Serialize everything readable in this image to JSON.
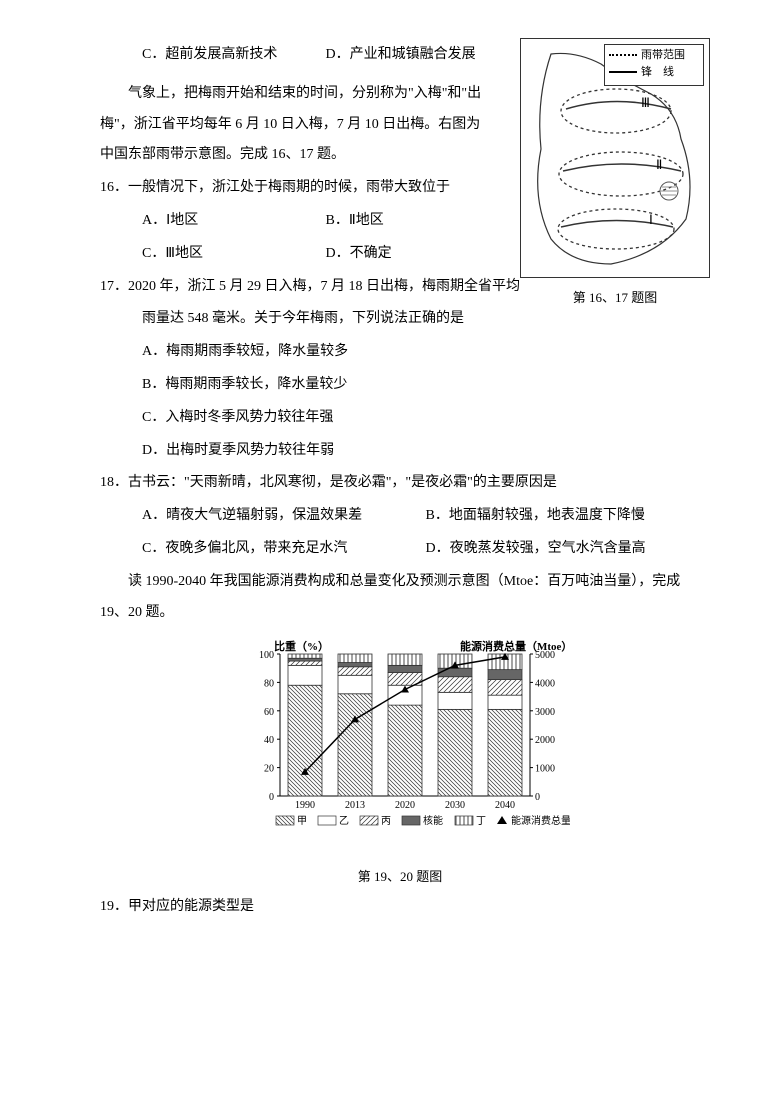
{
  "topOptions": {
    "c": "C．超前发展高新技术",
    "d": "D．产业和城镇融合发展"
  },
  "mapFigure": {
    "legend": {
      "rain": "雨带范围",
      "front": "锋　线"
    },
    "regions": [
      "Ⅰ",
      "Ⅱ",
      "Ⅲ"
    ],
    "caption": "第 16、17 题图"
  },
  "intro16": "气象上，把梅雨开始和结束的时间，分别称为\"入梅\"和\"出梅\"，浙江省平均每年 6 月 10 日入梅，7 月 10 日出梅。右图为中国东部雨带示意图。完成 16、17 题。",
  "q16": {
    "stem": "16．一般情况下，浙江处于梅雨期的时候，雨带大致位于",
    "a": "A．Ⅰ地区",
    "b": "B．Ⅱ地区",
    "c": "C．Ⅲ地区",
    "d": "D．不确定"
  },
  "q17": {
    "stem1": "17．2020 年，浙江 5 月 29 日入梅，7 月 18 日出梅，梅雨期全省平均",
    "stem2": "雨量达 548 毫米。关于今年梅雨，下列说法正确的是",
    "a": "A．梅雨期雨季较短，降水量较多",
    "b": "B．梅雨期雨季较长，降水量较少",
    "c": "C．入梅时冬季风势力较往年强",
    "d": "D．出梅时夏季风势力较往年弱"
  },
  "q18": {
    "stem": "18．古书云：\"天雨新晴，北风寒彻，是夜必霜\"，\"是夜必霜\"的主要原因是",
    "a": "A．晴夜大气逆辐射弱，保温效果差",
    "b": "B．地面辐射较强，地表温度下降慢",
    "c": "C．夜晚多偏北风，带来充足水汽",
    "d": "D．夜晚蒸发较强，空气水汽含量高"
  },
  "intro19": "读 1990-2040 年我国能源消费构成和总量变化及预测示意图（Mtoe：百万吨油当量），完成 19、20 题。",
  "chart": {
    "leftAxis": {
      "label": "比重（%）",
      "ticks": [
        0,
        20,
        40,
        60,
        80,
        100
      ]
    },
    "rightAxis": {
      "label": "能源消费总量（Mtoe）",
      "ticks": [
        0,
        1000,
        2000,
        3000,
        4000,
        5000
      ]
    },
    "years": [
      "1990",
      "2013",
      "2020",
      "2030",
      "2040"
    ],
    "series": {
      "jia": {
        "label": "甲",
        "values": [
          78,
          72,
          64,
          61,
          61
        ]
      },
      "yi": {
        "label": "乙",
        "values": [
          14,
          13,
          14,
          12,
          10
        ]
      },
      "bing": {
        "label": "丙",
        "values": [
          3,
          6,
          9,
          11,
          11
        ]
      },
      "he": {
        "label": "核能",
        "values": [
          2,
          3,
          5,
          6,
          7
        ]
      },
      "ding": {
        "label": "丁",
        "values": [
          3,
          6,
          8,
          10,
          11
        ]
      }
    },
    "totalLine": {
      "label": "能源消费总量",
      "values": [
        850,
        2700,
        3750,
        4600,
        4900
      ]
    },
    "caption": "第 19、20 题图"
  },
  "q19": {
    "stem": "19．甲对应的能源类型是"
  }
}
